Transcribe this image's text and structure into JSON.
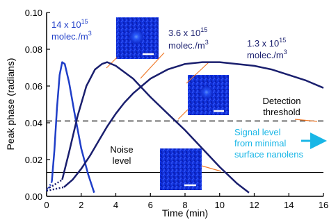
{
  "chart_data": {
    "type": "line",
    "xlabel": "Time (min)",
    "ylabel": "Peak phase (radians)",
    "xlim": [
      0,
      16
    ],
    "ylim": [
      0,
      0.1
    ],
    "x_ticks": [
      "0",
      "2",
      "4",
      "6",
      "8",
      "10",
      "12",
      "14",
      "16"
    ],
    "y_ticks": [
      "0.00",
      "0.02",
      "0.04",
      "0.06",
      "0.08",
      "0.10"
    ],
    "grid": false,
    "series": [
      {
        "name": "14 x 10^15 molec./m^3",
        "label_lines": [
          "14 x 10",
          "15",
          "molec./m",
          "3"
        ],
        "color": "#1f3ec8",
        "dotted": [
          [
            0.0,
            0.003
          ],
          [
            0.15,
            0.005
          ],
          [
            0.3,
            0.008
          ]
        ],
        "values": [
          [
            0.3,
            0.008
          ],
          [
            0.45,
            0.025
          ],
          [
            0.6,
            0.048
          ],
          [
            0.75,
            0.066
          ],
          [
            0.9,
            0.073
          ],
          [
            1.05,
            0.072
          ],
          [
            1.3,
            0.062
          ],
          [
            1.6,
            0.046
          ],
          [
            2.0,
            0.026
          ],
          [
            2.4,
            0.012
          ],
          [
            2.75,
            0.002
          ]
        ]
      },
      {
        "name": "3.6 x 10^15 molec./m^3",
        "label_lines": [
          "3.6 x 10",
          "15",
          "molec./m",
          "3"
        ],
        "color": "#1a1f6e",
        "dotted": [
          [
            0.0,
            0.004
          ],
          [
            0.4,
            0.006
          ],
          [
            0.9,
            0.009
          ]
        ],
        "values": [
          [
            0.9,
            0.009
          ],
          [
            1.3,
            0.024
          ],
          [
            1.8,
            0.044
          ],
          [
            2.3,
            0.06
          ],
          [
            2.8,
            0.069
          ],
          [
            3.2,
            0.072
          ],
          [
            3.5,
            0.073
          ],
          [
            4.0,
            0.071
          ],
          [
            5.0,
            0.064
          ],
          [
            6.0,
            0.054
          ],
          [
            7.0,
            0.045
          ],
          [
            8.0,
            0.036
          ],
          [
            9.0,
            0.026
          ],
          [
            10.0,
            0.016
          ],
          [
            11.0,
            0.007
          ],
          [
            11.7,
            0.002
          ]
        ]
      },
      {
        "name": "1.3 x 10^15 molec./m^3",
        "label_lines": [
          "1.3 x 10",
          "15",
          "molec./m",
          "3"
        ],
        "color": "#1a1f6e",
        "dotted": [
          [
            0.0,
            0.003
          ],
          [
            0.5,
            0.004
          ],
          [
            1.0,
            0.005
          ]
        ],
        "values": [
          [
            1.0,
            0.005
          ],
          [
            1.5,
            0.009
          ],
          [
            2.0,
            0.015
          ],
          [
            2.5,
            0.022
          ],
          [
            3.0,
            0.03
          ],
          [
            3.5,
            0.038
          ],
          [
            4.0,
            0.045
          ],
          [
            4.5,
            0.051
          ],
          [
            5.0,
            0.056
          ],
          [
            5.5,
            0.06
          ],
          [
            6.0,
            0.064
          ],
          [
            7.0,
            0.069
          ],
          [
            8.0,
            0.072
          ],
          [
            9.0,
            0.073
          ],
          [
            10.0,
            0.073
          ],
          [
            11.0,
            0.072
          ],
          [
            12.0,
            0.071
          ],
          [
            13.0,
            0.069
          ],
          [
            14.0,
            0.066
          ],
          [
            15.0,
            0.063
          ],
          [
            16.0,
            0.059
          ]
        ]
      }
    ],
    "reference_lines": [
      {
        "label": "Detection threshold",
        "label_lines": [
          "Detection",
          "threshold"
        ],
        "y": 0.041,
        "style": "dashed"
      },
      {
        "label": "Noise level",
        "label_lines": [
          "Noise",
          "level"
        ],
        "y": 0.013,
        "style": "solid"
      },
      {
        "label": "Signal level from minimal surface nanolens",
        "label_lines": [
          "Signal level",
          "from minimal",
          "surface nanolens"
        ],
        "color": "#19b6e6"
      }
    ],
    "insets": [
      {
        "name": "inset-image-14e15",
        "caption": ""
      },
      {
        "name": "inset-image-1.3e15",
        "caption": ""
      },
      {
        "name": "inset-image-noise",
        "caption": ""
      }
    ]
  }
}
